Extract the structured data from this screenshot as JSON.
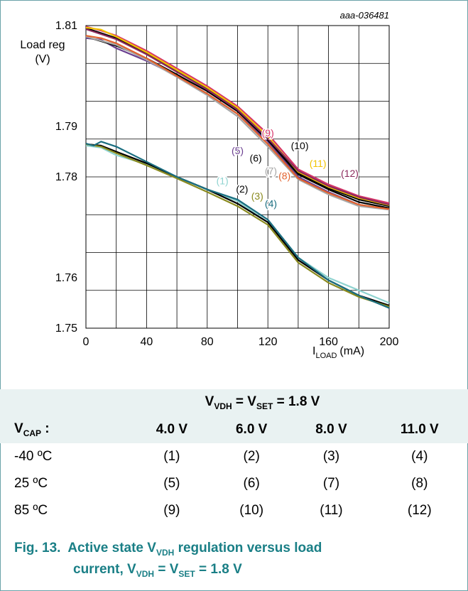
{
  "chart_data": {
    "type": "line",
    "code": "aaa-036481",
    "ylabel": "Load reg",
    "yunit": "(V)",
    "xlabel_main": "I",
    "xlabel_sub": "LOAD",
    "xunit": "(mA)",
    "xlim": [
      0,
      200
    ],
    "ylim": [
      1.75,
      1.81
    ],
    "xticks": [
      0,
      40,
      80,
      120,
      160,
      200
    ],
    "yticks": [
      1.75,
      1.76,
      1.78,
      1.79,
      1.81
    ],
    "ytick_labels": [
      "1.75",
      "1.76",
      "1.78",
      "1.79",
      "1.81"
    ],
    "grid": true,
    "series": [
      {
        "name": "(1)",
        "color": "#8fd3d0",
        "label_xy": [
          90,
          1.7785
        ],
        "points": [
          [
            0,
            1.7862
          ],
          [
            10,
            1.7858
          ],
          [
            20,
            1.7843
          ],
          [
            40,
            1.7825
          ],
          [
            60,
            1.78
          ],
          [
            80,
            1.7775
          ],
          [
            100,
            1.7752
          ],
          [
            120,
            1.771
          ],
          [
            140,
            1.764
          ],
          [
            160,
            1.76
          ],
          [
            180,
            1.7575
          ],
          [
            200,
            1.755
          ]
        ]
      },
      {
        "name": "(2)",
        "color": "#000000",
        "label_xy": [
          103,
          1.7769
        ],
        "points": [
          [
            0,
            1.7865
          ],
          [
            10,
            1.7862
          ],
          [
            20,
            1.785
          ],
          [
            40,
            1.7827
          ],
          [
            60,
            1.78
          ],
          [
            80,
            1.7775
          ],
          [
            100,
            1.7747
          ],
          [
            120,
            1.771
          ],
          [
            140,
            1.7635
          ],
          [
            160,
            1.7595
          ],
          [
            180,
            1.7565
          ],
          [
            200,
            1.7545
          ]
        ]
      },
      {
        "name": "(3)",
        "color": "#8a8a1e",
        "label_xy": [
          113,
          1.7755
        ],
        "points": [
          [
            0,
            1.7865
          ],
          [
            10,
            1.786
          ],
          [
            20,
            1.7847
          ],
          [
            40,
            1.7823
          ],
          [
            60,
            1.7797
          ],
          [
            80,
            1.777
          ],
          [
            100,
            1.7742
          ],
          [
            120,
            1.7705
          ],
          [
            140,
            1.763
          ],
          [
            160,
            1.759
          ],
          [
            180,
            1.7562
          ],
          [
            200,
            1.7543
          ]
        ]
      },
      {
        "name": "(4)",
        "color": "#1a6e80",
        "label_xy": [
          122,
          1.774
        ],
        "points": [
          [
            0,
            1.7866
          ],
          [
            5,
            1.7862
          ],
          [
            10,
            1.787
          ],
          [
            20,
            1.786
          ],
          [
            40,
            1.783
          ],
          [
            60,
            1.78
          ],
          [
            80,
            1.7775
          ],
          [
            100,
            1.7755
          ],
          [
            120,
            1.7715
          ],
          [
            140,
            1.764
          ],
          [
            160,
            1.7595
          ],
          [
            180,
            1.7565
          ],
          [
            200,
            1.754
          ]
        ]
      },
      {
        "name": "(5)",
        "color": "#6a3f90",
        "label_xy": [
          100,
          1.7845
        ],
        "points": [
          [
            0,
            1.8075
          ],
          [
            10,
            1.8072
          ],
          [
            20,
            1.8055
          ],
          [
            40,
            1.803
          ],
          [
            60,
            1.8
          ],
          [
            80,
            1.7965
          ],
          [
            100,
            1.7925
          ],
          [
            120,
            1.787
          ],
          [
            140,
            1.78
          ],
          [
            160,
            1.777
          ],
          [
            180,
            1.7745
          ],
          [
            200,
            1.7735
          ]
        ]
      },
      {
        "name": "(6)",
        "color": "#000000",
        "label_xy": [
          112,
          1.783
        ],
        "points": [
          [
            0,
            1.8078
          ],
          [
            20,
            1.806
          ],
          [
            40,
            1.8035
          ],
          [
            60,
            1.8003
          ],
          [
            80,
            1.797
          ],
          [
            100,
            1.793
          ],
          [
            120,
            1.7873
          ],
          [
            140,
            1.7805
          ],
          [
            160,
            1.7775
          ],
          [
            180,
            1.775
          ],
          [
            200,
            1.7738
          ]
        ]
      },
      {
        "name": "(7)",
        "color": "#a8a8a8",
        "label_xy": [
          122,
          1.7805
        ],
        "points": [
          [
            0,
            1.8078
          ],
          [
            20,
            1.8062
          ],
          [
            40,
            1.8032
          ],
          [
            60,
            1.7998
          ],
          [
            80,
            1.7962
          ],
          [
            100,
            1.792
          ],
          [
            120,
            1.786
          ],
          [
            140,
            1.7795
          ],
          [
            160,
            1.7765
          ],
          [
            180,
            1.7742
          ],
          [
            200,
            1.7735
          ]
        ]
      },
      {
        "name": "(8)",
        "color": "#e2622e",
        "label_xy": [
          131,
          1.7795
        ],
        "points": [
          [
            0,
            1.808
          ],
          [
            10,
            1.8075
          ],
          [
            20,
            1.8065
          ],
          [
            40,
            1.8035
          ],
          [
            60,
            1.8
          ],
          [
            80,
            1.7965
          ],
          [
            100,
            1.7925
          ],
          [
            120,
            1.7865
          ],
          [
            140,
            1.7797
          ],
          [
            160,
            1.7768
          ],
          [
            180,
            1.7745
          ],
          [
            200,
            1.7736
          ]
        ]
      },
      {
        "name": "(9)",
        "color": "#d63468",
        "label_xy": [
          120,
          1.788
        ],
        "points": [
          [
            0,
            1.8098
          ],
          [
            10,
            1.809
          ],
          [
            20,
            1.808
          ],
          [
            40,
            1.805
          ],
          [
            60,
            1.8015
          ],
          [
            80,
            1.798
          ],
          [
            100,
            1.794
          ],
          [
            120,
            1.7885
          ],
          [
            140,
            1.7815
          ],
          [
            160,
            1.7785
          ],
          [
            180,
            1.7762
          ],
          [
            200,
            1.7748
          ]
        ]
      },
      {
        "name": "(10)",
        "color": "#000000",
        "label_xy": [
          141,
          1.7855
        ],
        "points": [
          [
            0,
            1.8095
          ],
          [
            20,
            1.8075
          ],
          [
            40,
            1.8045
          ],
          [
            60,
            1.801
          ],
          [
            80,
            1.7975
          ],
          [
            100,
            1.7935
          ],
          [
            120,
            1.7878
          ],
          [
            140,
            1.7808
          ],
          [
            160,
            1.7778
          ],
          [
            180,
            1.7755
          ],
          [
            200,
            1.7742
          ]
        ]
      },
      {
        "name": "(11)",
        "color": "#f2c400",
        "label_xy": [
          153,
          1.782
        ],
        "points": [
          [
            0,
            1.8096
          ],
          [
            10,
            1.8092
          ],
          [
            20,
            1.8078
          ],
          [
            40,
            1.8047
          ],
          [
            60,
            1.8012
          ],
          [
            80,
            1.7977
          ],
          [
            100,
            1.7937
          ],
          [
            120,
            1.788
          ],
          [
            140,
            1.781
          ],
          [
            160,
            1.778
          ],
          [
            180,
            1.7758
          ],
          [
            200,
            1.7744
          ]
        ]
      },
      {
        "name": "(12)",
        "color": "#8b2a5c",
        "label_xy": [
          174,
          1.78
        ],
        "points": [
          [
            0,
            1.8093
          ],
          [
            20,
            1.8073
          ],
          [
            40,
            1.8043
          ],
          [
            60,
            1.8008
          ],
          [
            80,
            1.7973
          ],
          [
            100,
            1.7933
          ],
          [
            120,
            1.7876
          ],
          [
            140,
            1.7812
          ],
          [
            160,
            1.7782
          ],
          [
            180,
            1.776
          ],
          [
            200,
            1.7745
          ]
        ]
      }
    ]
  },
  "table": {
    "header_main": "V",
    "header_sub": "VDH",
    "header_mid": " = V",
    "header_sub2": "SET",
    "header_end": " = 1.8 V",
    "vcap_main": "V",
    "vcap_sub": "CAP",
    "vcap_end": " :",
    "columns": [
      "4.0 V",
      "6.0 V",
      "8.0 V",
      "11.0 V"
    ],
    "rows": [
      {
        "label": "-40 ºC",
        "cells": [
          "(1)",
          "(2)",
          "(3)",
          "(4)"
        ]
      },
      {
        "label": "25 ºC",
        "cells": [
          "(5)",
          "(6)",
          "(7)",
          "(8)"
        ]
      },
      {
        "label": "85 ºC",
        "cells": [
          "(9)",
          "(10)",
          "(11)",
          "(12)"
        ]
      }
    ]
  },
  "caption": {
    "fig": "Fig. 13.",
    "text1": "Active state V",
    "sub1": "VDH",
    "text2": " regulation versus load",
    "text3": "current, V",
    "sub2": "VDH",
    "text4": " = V",
    "sub3": "SET",
    "text5": " = 1.8 V"
  }
}
